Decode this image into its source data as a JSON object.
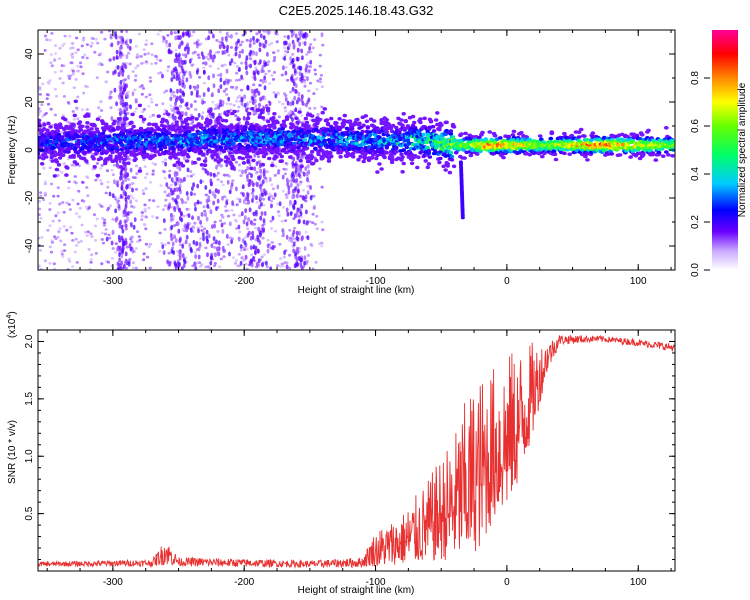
{
  "title": "C2E5.2025.146.18.43.G32",
  "chart_data": [
    {
      "type": "heatmap",
      "xlabel": "Height of straight line (km)",
      "ylabel": "Frequency (Hz)",
      "xlim": [
        -357,
        128
      ],
      "ylim": [
        -50,
        50
      ],
      "x_ticks": [
        -300,
        -200,
        -100,
        0,
        100
      ],
      "x_tick_labels": [
        "-300",
        "-200",
        "-100",
        "0",
        "100"
      ],
      "y_ticks": [
        -40,
        -20,
        0,
        20,
        40
      ],
      "y_tick_labels": [
        "-40",
        "-20",
        "0",
        "20",
        "40"
      ],
      "colorbar": {
        "label": "Normalized spectral amplitude",
        "range": [
          0,
          1
        ],
        "ticks": [
          0.0,
          0.2,
          0.4,
          0.6,
          0.8
        ],
        "tick_labels": [
          "0.0",
          "0.2",
          "0.4",
          "0.6",
          "0.8"
        ],
        "colors": [
          "#ffffff",
          "#6a00ff",
          "#0000ff",
          "#00ccff",
          "#00ff66",
          "#66ff00",
          "#ffff00",
          "#ff8800",
          "#ff0000",
          "#ff0099"
        ]
      },
      "band": {
        "center_hz": [
          {
            "x": -357,
            "y": 3
          },
          {
            "x": -250,
            "y": 4
          },
          {
            "x": -180,
            "y": 5
          },
          {
            "x": -100,
            "y": 4
          },
          {
            "x": -70,
            "y": 4
          },
          {
            "x": -40,
            "y": 2
          },
          {
            "x": 0,
            "y": 2
          },
          {
            "x": 60,
            "y": 2
          },
          {
            "x": 128,
            "y": 2
          }
        ],
        "peak_amplitude": [
          {
            "x": -357,
            "y": 0.25
          },
          {
            "x": -250,
            "y": 0.3
          },
          {
            "x": -150,
            "y": 0.3
          },
          {
            "x": -80,
            "y": 0.35
          },
          {
            "x": -40,
            "y": 0.55
          },
          {
            "x": -10,
            "y": 0.85
          },
          {
            "x": 30,
            "y": 0.6
          },
          {
            "x": 70,
            "y": 0.85
          },
          {
            "x": 128,
            "y": 0.6
          }
        ]
      },
      "grid": false
    },
    {
      "type": "line",
      "xlabel": "Height of straight line (km)",
      "ylabel": "SNR (10 * v/v)",
      "y_multiplier_label": "(x10",
      "y_multiplier_exp": "4",
      "y_multiplier_close": ")",
      "xlim": [
        -357,
        128
      ],
      "ylim": [
        0,
        2.1
      ],
      "x_ticks": [
        -300,
        -200,
        -100,
        0,
        100
      ],
      "x_tick_labels": [
        "-300",
        "-200",
        "-100",
        "0",
        "100"
      ],
      "y_ticks": [
        0.5,
        1.0,
        1.5,
        2.0
      ],
      "y_tick_labels": [
        "0.5",
        "1.0",
        "1.5",
        "2.0"
      ],
      "series": [
        {
          "color": "#e83030",
          "envelope": [
            {
              "x": -357,
              "low": 0.04,
              "high": 0.08
            },
            {
              "x": -270,
              "low": 0.04,
              "high": 0.1
            },
            {
              "x": -260,
              "low": 0.05,
              "high": 0.28
            },
            {
              "x": -250,
              "low": 0.04,
              "high": 0.12
            },
            {
              "x": -150,
              "low": 0.03,
              "high": 0.09
            },
            {
              "x": -110,
              "low": 0.03,
              "high": 0.12
            },
            {
              "x": -100,
              "low": 0.04,
              "high": 0.35
            },
            {
              "x": -80,
              "low": 0.06,
              "high": 0.5
            },
            {
              "x": -60,
              "low": 0.08,
              "high": 0.8
            },
            {
              "x": -40,
              "low": 0.1,
              "high": 1.2
            },
            {
              "x": -30,
              "low": 0.12,
              "high": 1.55
            },
            {
              "x": -20,
              "low": 0.2,
              "high": 1.7
            },
            {
              "x": -10,
              "low": 0.45,
              "high": 1.8
            },
            {
              "x": 0,
              "low": 0.55,
              "high": 1.9
            },
            {
              "x": 10,
              "low": 0.8,
              "high": 1.95
            },
            {
              "x": 20,
              "low": 1.2,
              "high": 2.0
            },
            {
              "x": 30,
              "low": 1.7,
              "high": 2.0
            },
            {
              "x": 40,
              "low": 1.97,
              "high": 2.06
            },
            {
              "x": 70,
              "low": 2.0,
              "high": 2.05
            },
            {
              "x": 100,
              "low": 1.96,
              "high": 2.02
            },
            {
              "x": 128,
              "low": 1.91,
              "high": 1.98
            }
          ]
        }
      ],
      "grid": false
    }
  ]
}
